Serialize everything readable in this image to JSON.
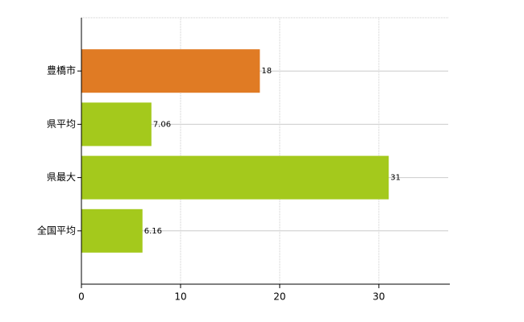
{
  "chart_data": {
    "type": "bar",
    "orientation": "horizontal",
    "categories": [
      "豊橋市",
      "県平均",
      "県最大",
      "全国平均"
    ],
    "values": [
      18,
      7.06,
      31,
      6.16
    ],
    "colors": [
      "#e07b24",
      "#a4c91c",
      "#a4c91c",
      "#a4c91c"
    ],
    "xlim": [
      0,
      37
    ],
    "xticks": [
      0,
      10,
      20,
      30
    ],
    "grid": true
  }
}
